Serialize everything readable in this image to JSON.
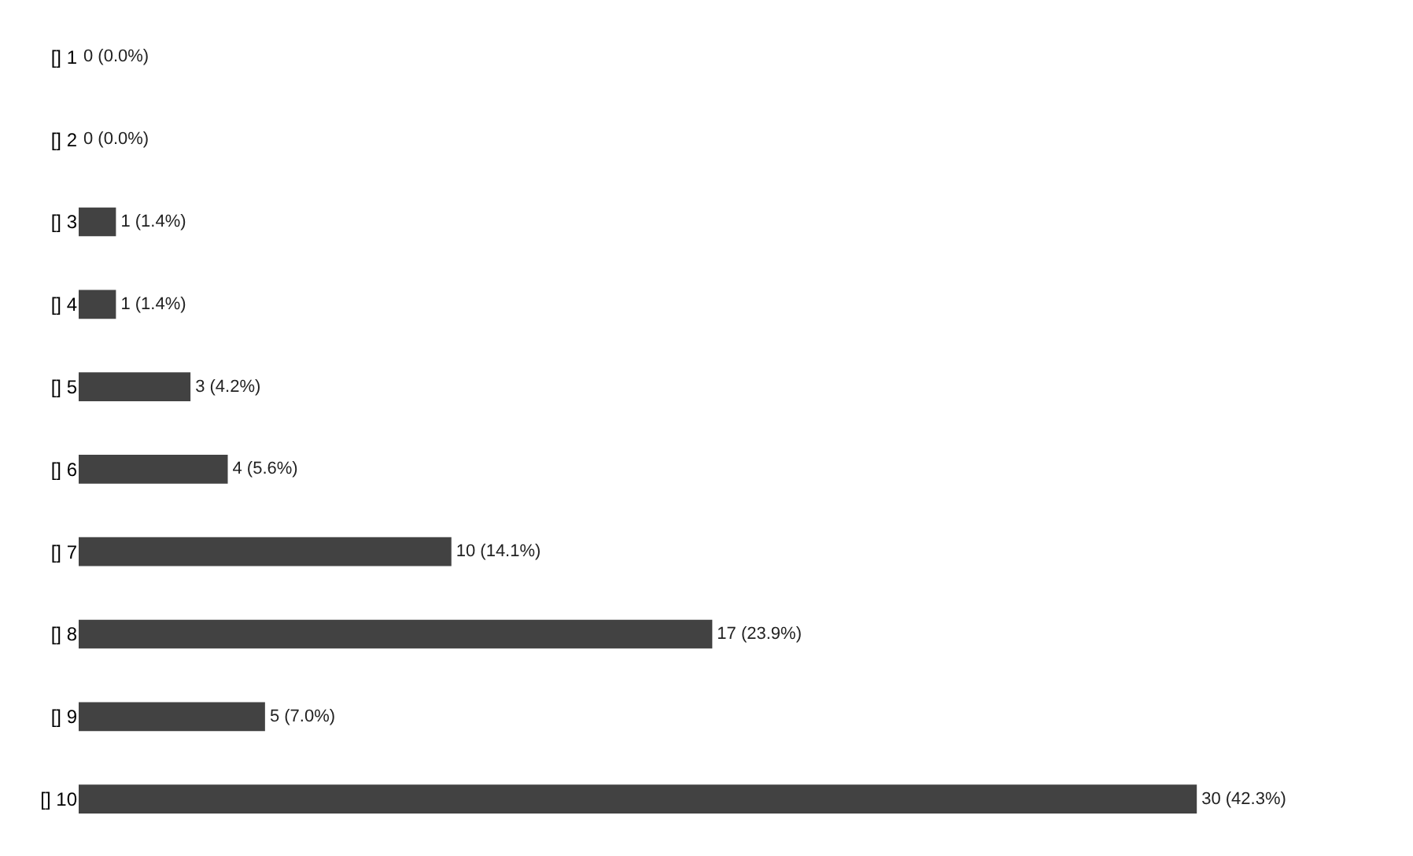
{
  "chart_data": {
    "type": "bar",
    "orientation": "horizontal",
    "categories": [
      "[] 1",
      "[] 2",
      "[] 3",
      "[] 4",
      "[] 5",
      "[] 6",
      "[] 7",
      "[] 8",
      "[] 9",
      "[] 10"
    ],
    "values": [
      0,
      0,
      1,
      1,
      3,
      4,
      10,
      17,
      5,
      30
    ],
    "value_labels": [
      "0 (0.0%)",
      "0 (0.0%)",
      "1 (1.4%)",
      "1 (1.4%)",
      "3 (4.2%)",
      "4 (5.6%)",
      "10 (14.1%)",
      "17 (23.9%)",
      "5 (7.0%)",
      "30 (42.3%)"
    ],
    "color": "#424242",
    "tick_labels": "y"
  }
}
